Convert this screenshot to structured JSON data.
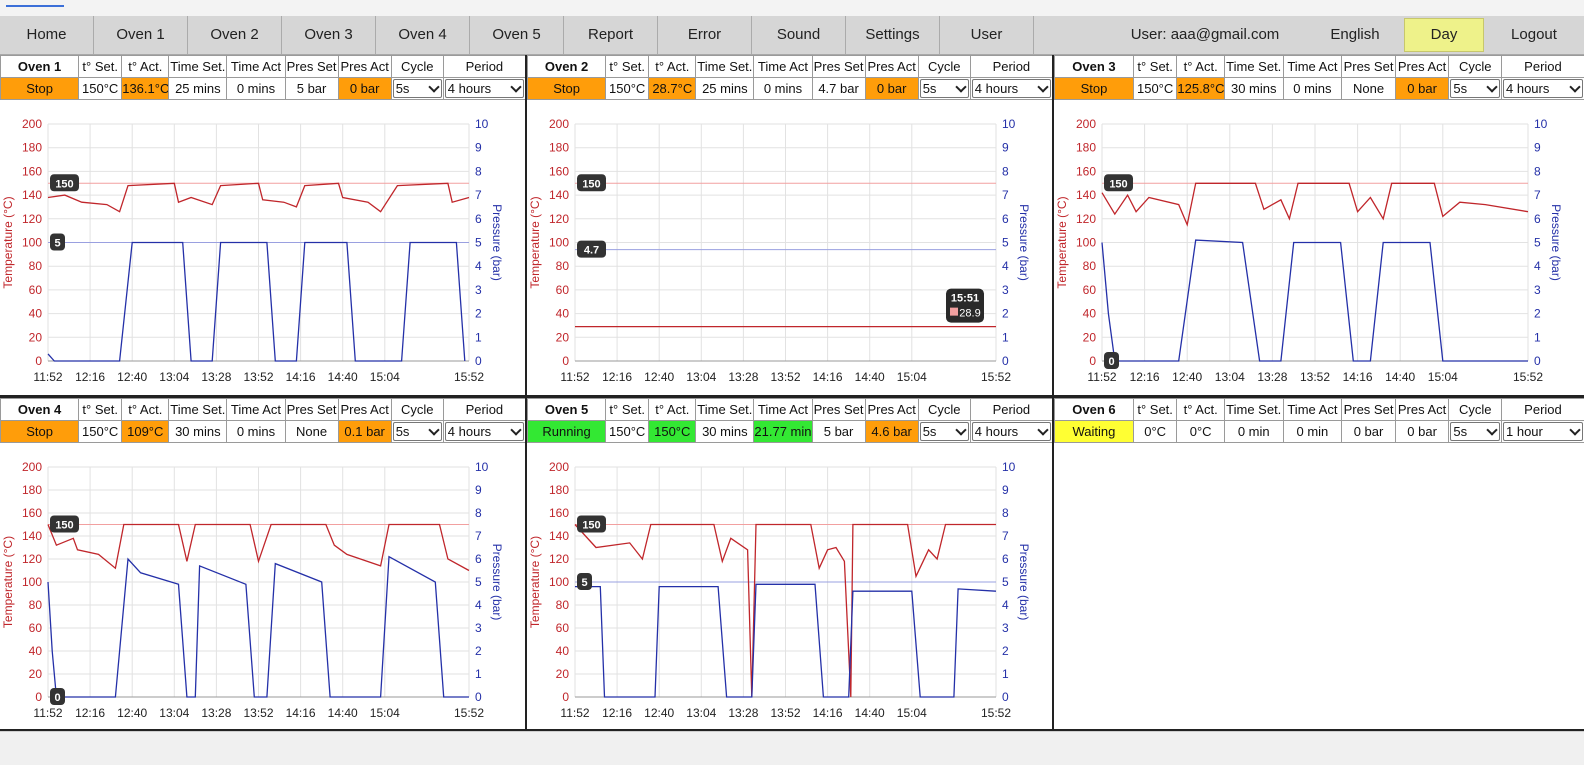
{
  "nav": {
    "items": [
      "Home",
      "Oven 1",
      "Oven 2",
      "Oven 3",
      "Oven 4",
      "Oven 5",
      "Report",
      "Error",
      "Sound",
      "Settings",
      "User"
    ],
    "user": "User: aaa@gmail.com",
    "language": "English",
    "day": "Day",
    "logout": "Logout"
  },
  "headers": [
    "t° Set.",
    "t° Act.",
    "Time Set.",
    "Time Act",
    "Pres Set",
    "Pres Act",
    "Cycle",
    "Period"
  ],
  "panels": [
    {
      "name": "Oven 1",
      "status": "Stop",
      "t_set": "150°C",
      "t_act": "136.1°C",
      "time_set": "25 mins",
      "time_act": "0 mins",
      "pres_set": "5 bar",
      "pres_act": "0 bar",
      "cycle": "5s",
      "period": "4 hours"
    },
    {
      "name": "Oven 2",
      "status": "Stop",
      "t_set": "150°C",
      "t_act": "28.7°C",
      "time_set": "25 mins",
      "time_act": "0 mins",
      "pres_set": "4.7 bar",
      "pres_act": "0 bar",
      "cycle": "5s",
      "period": "4 hours"
    },
    {
      "name": "Oven 3",
      "status": "Stop",
      "t_set": "150°C",
      "t_act": "125.8°C",
      "time_set": "30 mins",
      "time_act": "0 mins",
      "pres_set": "None",
      "pres_act": "0 bar",
      "cycle": "5s",
      "period": "4 hours"
    },
    {
      "name": "Oven 4",
      "status": "Stop",
      "t_set": "150°C",
      "t_act": "109°C",
      "time_set": "30 mins",
      "time_act": "0 mins",
      "pres_set": "None",
      "pres_act": "0.1 bar",
      "cycle": "5s",
      "period": "4 hours"
    },
    {
      "name": "Oven 5",
      "status": "Running",
      "t_set": "150°C",
      "t_act": "150°C",
      "time_set": "30 mins",
      "time_act": "21.77 mins",
      "pres_set": "5 bar",
      "pres_act": "4.6 bar",
      "cycle": "5s",
      "period": "4 hours"
    },
    {
      "name": "Oven 6",
      "status": "Waiting",
      "t_set": "0°C",
      "t_act": "0°C",
      "time_set": "0 min",
      "time_act": "0 min",
      "pres_set": "0 bar",
      "pres_act": "0 bar",
      "cycle": "5s",
      "period": "1 hour"
    }
  ],
  "colors": {
    "temperature": "#c0262b",
    "pressure": "#2430a8",
    "stop": "#ff9d0a",
    "running": "#33e833",
    "waiting": "#ffff33",
    "day": "#eef28a"
  },
  "chart_data": [
    {
      "type": "line",
      "ylabel": "Temperature (°C)",
      "y2label": "Pressure (bar)",
      "ylim": [
        0,
        200
      ],
      "y2lim": [
        0,
        10
      ],
      "x_ticks": [
        "11:52",
        "12:16",
        "12:40",
        "13:04",
        "13:28",
        "13:52",
        "14:16",
        "14:40",
        "15:04",
        "15:52"
      ],
      "temp_setpoint": 150,
      "pres_setpoint": 5,
      "series": [
        {
          "name": "Temperature",
          "points": [
            [
              0,
              138
            ],
            [
              0.04,
              140
            ],
            [
              0.08,
              134
            ],
            [
              0.14,
              132
            ],
            [
              0.17,
              126
            ],
            [
              0.19,
              148
            ],
            [
              0.3,
              150
            ],
            [
              0.31,
              134
            ],
            [
              0.34,
              138
            ],
            [
              0.39,
              132
            ],
            [
              0.41,
              148
            ],
            [
              0.5,
              150
            ],
            [
              0.51,
              136
            ],
            [
              0.56,
              134
            ],
            [
              0.59,
              130
            ],
            [
              0.61,
              148
            ],
            [
              0.69,
              150
            ],
            [
              0.7,
              138
            ],
            [
              0.76,
              134
            ],
            [
              0.79,
              126
            ],
            [
              0.83,
              148
            ],
            [
              0.95,
              150
            ],
            [
              0.96,
              134
            ],
            [
              1,
              138
            ]
          ]
        },
        {
          "name": "Pressure",
          "points": [
            [
              0,
              0.3
            ],
            [
              0.015,
              0
            ],
            [
              0.17,
              0
            ],
            [
              0.2,
              5
            ],
            [
              0.32,
              5
            ],
            [
              0.34,
              0
            ],
            [
              0.39,
              0
            ],
            [
              0.41,
              5
            ],
            [
              0.52,
              5
            ],
            [
              0.54,
              0
            ],
            [
              0.59,
              0
            ],
            [
              0.61,
              5
            ],
            [
              0.71,
              5
            ],
            [
              0.73,
              0
            ],
            [
              0.84,
              0
            ],
            [
              0.86,
              5
            ],
            [
              0.97,
              5
            ],
            [
              0.99,
              0
            ]
          ]
        }
      ]
    },
    {
      "type": "line",
      "ylabel": "Temperature (°C)",
      "y2label": "Pressure (bar)",
      "ylim": [
        0,
        200
      ],
      "y2lim": [
        0,
        10
      ],
      "x_ticks": [
        "11:52",
        "12:16",
        "12:40",
        "13:04",
        "13:28",
        "13:52",
        "14:16",
        "14:40",
        "15:04",
        "15:52"
      ],
      "temp_setpoint": 150,
      "pres_setpoint": 4.7,
      "tooltip": {
        "time": "15:51",
        "value": "28.9"
      },
      "series": [
        {
          "name": "Temperature",
          "points": [
            [
              0,
              29
            ],
            [
              0.25,
              29
            ],
            [
              0.5,
              29
            ],
            [
              0.75,
              29
            ],
            [
              1,
              29
            ]
          ]
        }
      ]
    },
    {
      "type": "line",
      "ylabel": "Temperature (°C)",
      "y2label": "Pressure (bar)",
      "ylim": [
        0,
        200
      ],
      "y2lim": [
        0,
        10
      ],
      "x_ticks": [
        "11:52",
        "12:16",
        "12:40",
        "13:04",
        "13:28",
        "13:52",
        "14:16",
        "14:40",
        "15:04",
        "15:52"
      ],
      "temp_setpoint": 150,
      "pres_setpoint": 0,
      "series": [
        {
          "name": "Temperature",
          "points": [
            [
              0,
              142
            ],
            [
              0.03,
              124
            ],
            [
              0.06,
              140
            ],
            [
              0.08,
              126
            ],
            [
              0.11,
              138
            ],
            [
              0.18,
              132
            ],
            [
              0.2,
              115
            ],
            [
              0.22,
              150
            ],
            [
              0.36,
              150
            ],
            [
              0.38,
              128
            ],
            [
              0.42,
              136
            ],
            [
              0.44,
              120
            ],
            [
              0.46,
              150
            ],
            [
              0.58,
              150
            ],
            [
              0.6,
              126
            ],
            [
              0.63,
              138
            ],
            [
              0.66,
              120
            ],
            [
              0.68,
              150
            ],
            [
              0.78,
              150
            ],
            [
              0.8,
              122
            ],
            [
              0.84,
              134
            ],
            [
              0.9,
              132
            ],
            [
              1,
              126
            ]
          ]
        },
        {
          "name": "Pressure",
          "points": [
            [
              0,
              5
            ],
            [
              0.015,
              2
            ],
            [
              0.03,
              0
            ],
            [
              0.18,
              0
            ],
            [
              0.22,
              5.1
            ],
            [
              0.33,
              5
            ],
            [
              0.37,
              0
            ],
            [
              0.42,
              0
            ],
            [
              0.45,
              5
            ],
            [
              0.56,
              5
            ],
            [
              0.59,
              0
            ],
            [
              0.63,
              0
            ],
            [
              0.66,
              5
            ],
            [
              0.77,
              5
            ],
            [
              0.8,
              0
            ],
            [
              1,
              0
            ]
          ]
        }
      ]
    },
    {
      "type": "line",
      "ylabel": "Temperature (°C)",
      "y2label": "Pressure (bar)",
      "ylim": [
        0,
        200
      ],
      "y2lim": [
        0,
        10
      ],
      "x_ticks": [
        "11:52",
        "12:16",
        "12:40",
        "13:04",
        "13:28",
        "13:52",
        "14:16",
        "14:40",
        "15:04",
        "15:52"
      ],
      "temp_setpoint": 150,
      "pres_setpoint": 0,
      "series": [
        {
          "name": "Temperature",
          "points": [
            [
              0,
              150
            ],
            [
              0.02,
              132
            ],
            [
              0.06,
              138
            ],
            [
              0.07,
              128
            ],
            [
              0.12,
              124
            ],
            [
              0.16,
              112
            ],
            [
              0.18,
              150
            ],
            [
              0.31,
              150
            ],
            [
              0.33,
              118
            ],
            [
              0.35,
              150
            ],
            [
              0.48,
              150
            ],
            [
              0.5,
              118
            ],
            [
              0.53,
              150
            ],
            [
              0.66,
              150
            ],
            [
              0.68,
              132
            ],
            [
              0.71,
              124
            ],
            [
              0.79,
              114
            ],
            [
              0.81,
              150
            ],
            [
              0.93,
              150
            ],
            [
              0.95,
              120
            ],
            [
              1,
              110
            ]
          ]
        },
        {
          "name": "Pressure",
          "points": [
            [
              0,
              5
            ],
            [
              0.01,
              2
            ],
            [
              0.02,
              0
            ],
            [
              0.16,
              0
            ],
            [
              0.19,
              6
            ],
            [
              0.22,
              5.4
            ],
            [
              0.31,
              4.9
            ],
            [
              0.33,
              0
            ],
            [
              0.35,
              0
            ],
            [
              0.36,
              5.7
            ],
            [
              0.47,
              4.9
            ],
            [
              0.49,
              0
            ],
            [
              0.52,
              0
            ],
            [
              0.54,
              5.8
            ],
            [
              0.65,
              5
            ],
            [
              0.67,
              0
            ],
            [
              0.79,
              0
            ],
            [
              0.81,
              6.1
            ],
            [
              0.92,
              5
            ],
            [
              0.94,
              0
            ],
            [
              1,
              0
            ]
          ]
        }
      ]
    },
    {
      "type": "line",
      "ylabel": "Temperature (°C)",
      "y2label": "Pressure (bar)",
      "ylim": [
        0,
        200
      ],
      "y2lim": [
        0,
        10
      ],
      "x_ticks": [
        "11:52",
        "12:16",
        "12:40",
        "13:04",
        "13:28",
        "13:52",
        "14:16",
        "14:40",
        "15:04",
        "15:52"
      ],
      "temp_setpoint": 150,
      "pres_setpoint": 5,
      "series": [
        {
          "name": "Temperature",
          "points": [
            [
              0,
              150
            ],
            [
              0.05,
              130
            ],
            [
              0.13,
              134
            ],
            [
              0.16,
              120
            ],
            [
              0.18,
              150
            ],
            [
              0.33,
              150
            ],
            [
              0.35,
              118
            ],
            [
              0.37,
              138
            ],
            [
              0.41,
              128
            ],
            [
              0.42,
              0
            ],
            [
              0.43,
              150
            ],
            [
              0.56,
              150
            ],
            [
              0.58,
              112
            ],
            [
              0.6,
              128
            ],
            [
              0.62,
              130
            ],
            [
              0.64,
              118
            ],
            [
              0.655,
              0
            ],
            [
              0.66,
              150
            ],
            [
              0.79,
              150
            ],
            [
              0.81,
              105
            ],
            [
              0.84,
              128
            ],
            [
              0.86,
              120
            ],
            [
              0.88,
              150
            ],
            [
              1,
              150
            ]
          ]
        },
        {
          "name": "Pressure",
          "points": [
            [
              0,
              4.8
            ],
            [
              0.06,
              4.8
            ],
            [
              0.07,
              0
            ],
            [
              0.19,
              0
            ],
            [
              0.2,
              4.8
            ],
            [
              0.34,
              4.8
            ],
            [
              0.36,
              0
            ],
            [
              0.42,
              0
            ],
            [
              0.43,
              4.9
            ],
            [
              0.57,
              4.9
            ],
            [
              0.59,
              0
            ],
            [
              0.65,
              0
            ],
            [
              0.66,
              4.6
            ],
            [
              0.8,
              4.6
            ],
            [
              0.82,
              0
            ],
            [
              0.9,
              0
            ],
            [
              0.91,
              4.7
            ],
            [
              1,
              4.6
            ]
          ]
        }
      ]
    }
  ]
}
